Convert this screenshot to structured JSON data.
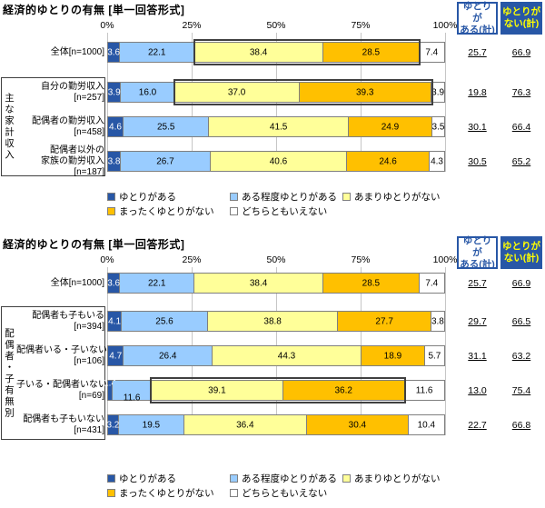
{
  "colors": {
    "accent_blue": "#2857a6",
    "light_blue": "#99ccff",
    "pale_yellow": "#ffff99",
    "gold": "#ffc000",
    "neutral_white": "#ffffff",
    "nai_header_text": "#ffff00",
    "highlight_border": "#404040"
  },
  "legend": {
    "rows": [
      [
        {
          "label": "ゆとりがある",
          "color": "#2857a6"
        },
        {
          "label": "ある程度ゆとりがある",
          "color": "#99ccff"
        },
        {
          "label": "あまりゆとりがない",
          "color": "#ffff99"
        }
      ],
      [
        {
          "label": "まったくゆとりがない",
          "color": "#ffc000"
        },
        {
          "label": "どちらともいえない",
          "color": "#ffffff"
        }
      ]
    ]
  },
  "charts": [
    {
      "title": "経済的ゆとりの有無 [単一回答形式]",
      "axis_ticks": [
        "0%",
        "25%",
        "50%",
        "75%",
        "100%"
      ],
      "group_label": "主な家計収入",
      "summary_headers": [
        {
          "lines": [
            "ゆとりが",
            "ある(計)"
          ]
        },
        {
          "lines": [
            "ゆとりが",
            "ない(計)"
          ]
        }
      ],
      "chart_data": {
        "type": "bar",
        "stacked": true,
        "orientation": "horizontal",
        "xlim": [
          0,
          100
        ],
        "unit": "%",
        "categories": [
          {
            "label_lines": [
              "全体[n=1000]"
            ],
            "in_group": false
          },
          {
            "label_lines": [
              "自分の勤労収入",
              "[n=257]"
            ],
            "in_group": true
          },
          {
            "label_lines": [
              "配偶者の勤労収入",
              "[n=458]"
            ],
            "in_group": true
          },
          {
            "label_lines": [
              "配偶者以外の",
              "家族の勤労収入",
              "[n=187]"
            ],
            "in_group": true
          }
        ],
        "series": [
          {
            "name": "ゆとりがある",
            "color": "#2857a6",
            "text_color": "#ffffff",
            "values": [
              3.6,
              3.9,
              4.6,
              3.8
            ]
          },
          {
            "name": "ある程度ゆとりがある",
            "color": "#99ccff",
            "text_color": "#000000",
            "values": [
              22.1,
              16.0,
              25.5,
              26.7
            ]
          },
          {
            "name": "あまりゆとりがない",
            "color": "#ffff99",
            "text_color": "#000000",
            "values": [
              38.4,
              37.0,
              41.5,
              40.6
            ]
          },
          {
            "name": "まったくゆとりがない",
            "color": "#ffc000",
            "text_color": "#000000",
            "values": [
              28.5,
              39.3,
              24.9,
              24.6
            ]
          },
          {
            "name": "どちらともいえない",
            "color": "#ffffff",
            "text_color": "#000000",
            "values": [
              7.4,
              3.9,
              3.5,
              4.3
            ]
          }
        ],
        "summaries": [
          {
            "header": "ゆとりがある(計)",
            "values": [
              25.7,
              19.8,
              30.1,
              30.5
            ]
          },
          {
            "header": "ゆとりがない(計)",
            "values": [
              66.9,
              76.3,
              66.4,
              65.2
            ]
          }
        ],
        "highlights": [
          {
            "row": 0,
            "from_series": 2,
            "to_series": 3
          },
          {
            "row": 1,
            "from_series": 2,
            "to_series": 3
          }
        ]
      }
    },
    {
      "title": "経済的ゆとりの有無 [単一回答形式]",
      "axis_ticks": [
        "0%",
        "25%",
        "50%",
        "75%",
        "100%"
      ],
      "group_label": "配偶者・子有無別",
      "summary_headers": [
        {
          "lines": [
            "ゆとりが",
            "ある(計)"
          ]
        },
        {
          "lines": [
            "ゆとりが",
            "ない(計)"
          ]
        }
      ],
      "chart_data": {
        "type": "bar",
        "stacked": true,
        "orientation": "horizontal",
        "xlim": [
          0,
          100
        ],
        "unit": "%",
        "categories": [
          {
            "label_lines": [
              "全体[n=1000]"
            ],
            "in_group": false
          },
          {
            "label_lines": [
              "配偶者も子もいる",
              "[n=394]"
            ],
            "in_group": true
          },
          {
            "label_lines": [
              "配偶者いる・子いない",
              "[n=106]"
            ],
            "in_group": true
          },
          {
            "label_lines": [
              "子いる・配偶者いない",
              "[n=69]"
            ],
            "in_group": true
          },
          {
            "label_lines": [
              "配偶者も子もいない",
              "[n=431]"
            ],
            "in_group": true
          }
        ],
        "series": [
          {
            "name": "ゆとりがある",
            "color": "#2857a6",
            "text_color": "#ffffff",
            "values": [
              3.6,
              4.1,
              4.7,
              1.4,
              3.2
            ]
          },
          {
            "name": "ある程度ゆとりがある",
            "color": "#99ccff",
            "text_color": "#000000",
            "values": [
              22.1,
              25.6,
              26.4,
              11.6,
              19.5
            ]
          },
          {
            "name": "あまりゆとりがない",
            "color": "#ffff99",
            "text_color": "#000000",
            "values": [
              38.4,
              38.8,
              44.3,
              39.1,
              36.4
            ]
          },
          {
            "name": "まったくゆとりがない",
            "color": "#ffc000",
            "text_color": "#000000",
            "values": [
              28.5,
              27.7,
              18.9,
              36.2,
              30.4
            ]
          },
          {
            "name": "どちらともいえない",
            "color": "#ffffff",
            "text_color": "#000000",
            "values": [
              7.4,
              3.8,
              5.7,
              11.6,
              10.4
            ]
          }
        ],
        "summaries": [
          {
            "header": "ゆとりがある(計)",
            "values": [
              25.7,
              29.7,
              31.1,
              13.0,
              22.7
            ]
          },
          {
            "header": "ゆとりがない(計)",
            "values": [
              66.9,
              66.5,
              63.2,
              75.4,
              66.8
            ]
          }
        ],
        "highlights": [
          {
            "row": 3,
            "from_series": 2,
            "to_series": 3
          }
        ]
      }
    }
  ]
}
